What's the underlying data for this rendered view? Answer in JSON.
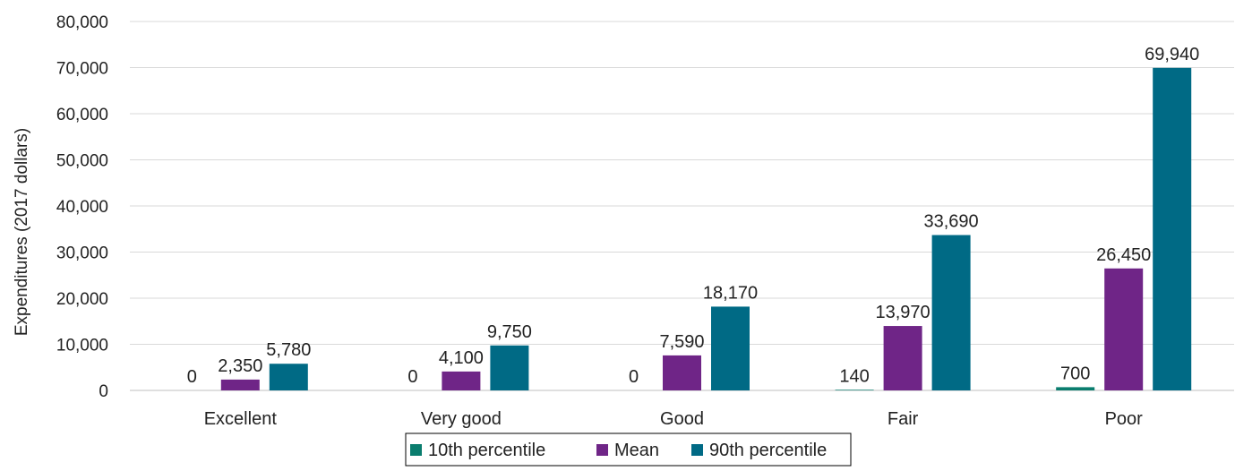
{
  "chart_data": {
    "type": "bar",
    "title": "",
    "xlabel": "",
    "ylabel": "Expenditures (2017 dollars)",
    "categories": [
      "Excellent",
      "Very good",
      "Good",
      "Fair",
      "Poor"
    ],
    "series": [
      {
        "name": "10th percentile",
        "color": "#0a7d6e",
        "values": [
          0,
          0,
          0,
          140,
          700
        ],
        "labels": [
          "0",
          "0",
          "0",
          "140",
          "700"
        ]
      },
      {
        "name": "Mean",
        "color": "#6f2587",
        "values": [
          2350,
          4100,
          7590,
          13970,
          26450
        ],
        "labels": [
          "2,350",
          "4,100",
          "7,590",
          "13,970",
          "26,450"
        ]
      },
      {
        "name": "90th percentile",
        "color": "#006a85",
        "values": [
          5780,
          9750,
          18170,
          33690,
          69940
        ],
        "labels": [
          "5,780",
          "9,750",
          "18,170",
          "33,690",
          "69,940"
        ]
      }
    ],
    "ylim": [
      0,
      80000
    ],
    "yticks": [
      0,
      10000,
      20000,
      30000,
      40000,
      50000,
      60000,
      70000,
      80000
    ],
    "ytick_labels": [
      "0",
      "10,000",
      "20,000",
      "30,000",
      "40,000",
      "50,000",
      "60,000",
      "70,000",
      "80,000"
    ],
    "grid": true,
    "legend_position": "bottom-center"
  }
}
